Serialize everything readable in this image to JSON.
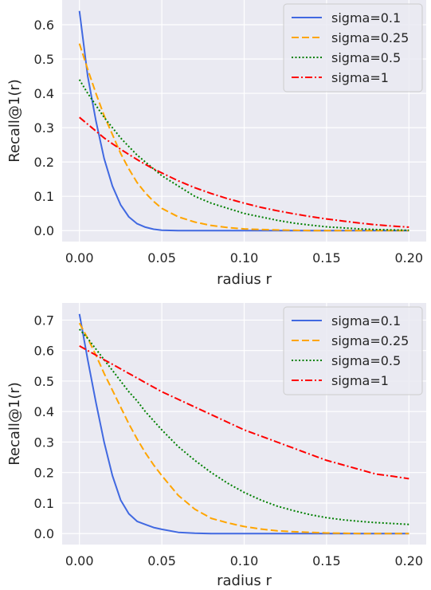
{
  "chart_data": [
    {
      "type": "line",
      "xlabel": "radius r",
      "ylabel": "Recall@1(r)",
      "xlim": [
        -0.0105,
        0.2105
      ],
      "ylim": [
        -0.032,
        0.672
      ],
      "xticks": [
        0.0,
        0.05,
        0.1,
        0.15,
        0.2
      ],
      "xtick_labels": [
        "0.00",
        "0.05",
        "0.10",
        "0.15",
        "0.20"
      ],
      "yticks": [
        0.0,
        0.1,
        0.2,
        0.3,
        0.4,
        0.5,
        0.6
      ],
      "ytick_labels": [
        "0.0",
        "0.1",
        "0.2",
        "0.3",
        "0.4",
        "0.5",
        "0.6"
      ],
      "grid": true,
      "background": "#eaeaf2",
      "legend_position": "top-right",
      "x": [
        0.0,
        0.005,
        0.01,
        0.015,
        0.02,
        0.025,
        0.03,
        0.035,
        0.04,
        0.045,
        0.05,
        0.06,
        0.07,
        0.08,
        0.09,
        0.1,
        0.11,
        0.12,
        0.13,
        0.14,
        0.15,
        0.16,
        0.17,
        0.18,
        0.19,
        0.2
      ],
      "series": [
        {
          "name": "sigma=0.1",
          "color": "#4169e1",
          "dash": "solid",
          "values": [
            0.64,
            0.45,
            0.32,
            0.21,
            0.13,
            0.075,
            0.04,
            0.02,
            0.01,
            0.004,
            0.001,
            0,
            0,
            0,
            0,
            0,
            0,
            0,
            0,
            0,
            0,
            0,
            0,
            0,
            0,
            0
          ]
        },
        {
          "name": "sigma=0.25",
          "color": "#ffa500",
          "dash": "dashed",
          "values": [
            0.545,
            0.47,
            0.4,
            0.335,
            0.28,
            0.225,
            0.18,
            0.14,
            0.11,
            0.085,
            0.065,
            0.04,
            0.025,
            0.015,
            0.009,
            0.005,
            0.003,
            0.002,
            0.001,
            0,
            0,
            0,
            0,
            0,
            0,
            0
          ]
        },
        {
          "name": "sigma=0.5",
          "color": "#008000",
          "dash": "dotted",
          "values": [
            0.44,
            0.4,
            0.365,
            0.33,
            0.3,
            0.27,
            0.245,
            0.22,
            0.2,
            0.18,
            0.16,
            0.13,
            0.1,
            0.08,
            0.065,
            0.05,
            0.04,
            0.03,
            0.022,
            0.016,
            0.011,
            0.008,
            0.005,
            0.003,
            0.002,
            0.001
          ]
        },
        {
          "name": "sigma=1",
          "color": "#ff0000",
          "dash": "dashdot",
          "values": [
            0.33,
            0.31,
            0.29,
            0.27,
            0.253,
            0.237,
            0.222,
            0.207,
            0.193,
            0.18,
            0.168,
            0.145,
            0.125,
            0.108,
            0.093,
            0.08,
            0.068,
            0.058,
            0.049,
            0.041,
            0.034,
            0.028,
            0.022,
            0.017,
            0.013,
            0.01
          ]
        }
      ]
    },
    {
      "type": "line",
      "xlabel": "radius r",
      "ylabel": "Recall@1(r)",
      "xlim": [
        -0.0105,
        0.2105
      ],
      "ylim": [
        -0.036,
        0.756
      ],
      "xticks": [
        0.0,
        0.05,
        0.1,
        0.15,
        0.2
      ],
      "xtick_labels": [
        "0.00",
        "0.05",
        "0.10",
        "0.15",
        "0.20"
      ],
      "yticks": [
        0.0,
        0.1,
        0.2,
        0.3,
        0.4,
        0.5,
        0.6,
        0.7
      ],
      "ytick_labels": [
        "0.0",
        "0.1",
        "0.2",
        "0.3",
        "0.4",
        "0.5",
        "0.6",
        "0.7"
      ],
      "grid": true,
      "background": "#eaeaf2",
      "legend_position": "top-right",
      "x": [
        0.0,
        0.005,
        0.01,
        0.015,
        0.02,
        0.025,
        0.03,
        0.035,
        0.04,
        0.045,
        0.05,
        0.06,
        0.07,
        0.08,
        0.09,
        0.1,
        0.11,
        0.12,
        0.13,
        0.14,
        0.15,
        0.16,
        0.17,
        0.18,
        0.19,
        0.2
      ],
      "series": [
        {
          "name": "sigma=0.1",
          "color": "#4169e1",
          "dash": "solid",
          "values": [
            0.72,
            0.57,
            0.43,
            0.3,
            0.19,
            0.11,
            0.065,
            0.04,
            0.03,
            0.02,
            0.014,
            0.004,
            0.001,
            0,
            0,
            0,
            0,
            0,
            0,
            0,
            0,
            0,
            0,
            0,
            0,
            0
          ]
        },
        {
          "name": "sigma=0.25",
          "color": "#ffa500",
          "dash": "dashed",
          "values": [
            0.69,
            0.64,
            0.585,
            0.525,
            0.47,
            0.415,
            0.36,
            0.31,
            0.265,
            0.225,
            0.19,
            0.125,
            0.08,
            0.05,
            0.035,
            0.023,
            0.015,
            0.009,
            0.006,
            0.004,
            0.002,
            0.001,
            0,
            0,
            0,
            0
          ]
        },
        {
          "name": "sigma=0.5",
          "color": "#008000",
          "dash": "dotted",
          "values": [
            0.67,
            0.64,
            0.605,
            0.57,
            0.535,
            0.5,
            0.465,
            0.435,
            0.4,
            0.37,
            0.34,
            0.285,
            0.24,
            0.2,
            0.165,
            0.135,
            0.11,
            0.09,
            0.075,
            0.062,
            0.052,
            0.045,
            0.04,
            0.036,
            0.033,
            0.03
          ]
        },
        {
          "name": "sigma=1",
          "color": "#ff0000",
          "dash": "dashdot",
          "values": [
            0.615,
            0.6,
            0.585,
            0.57,
            0.555,
            0.54,
            0.525,
            0.51,
            0.495,
            0.48,
            0.465,
            0.44,
            0.415,
            0.39,
            0.365,
            0.34,
            0.32,
            0.3,
            0.28,
            0.26,
            0.24,
            0.225,
            0.21,
            0.195,
            0.188,
            0.18
          ]
        }
      ]
    }
  ]
}
